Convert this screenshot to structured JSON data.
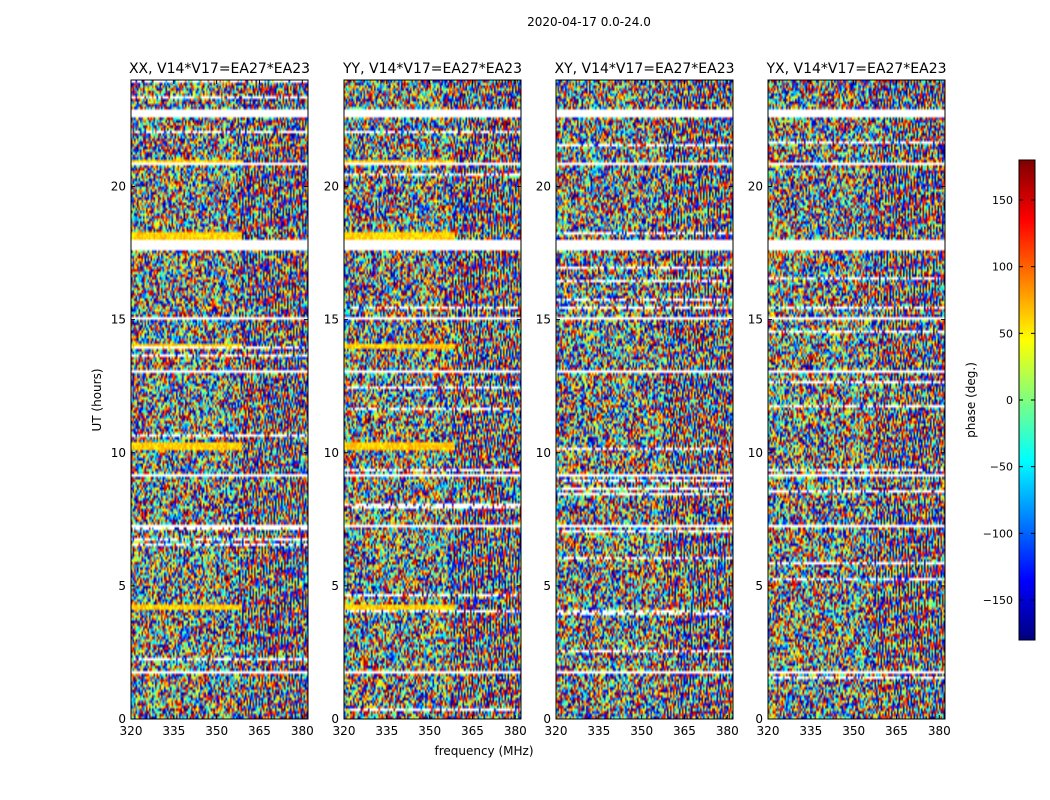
{
  "figure": {
    "suptitle": "2020-04-17 0.0-24.0",
    "xlabel": "frequency (MHz)",
    "ylabel": "UT (hours)",
    "colorbar_label": "phase (deg.)",
    "colorbar_colors": [
      "#00007f",
      "#0000ff",
      "#007fff",
      "#00ffff",
      "#7fff7f",
      "#ffff00",
      "#ff7f00",
      "#ff0000",
      "#7f0000"
    ]
  },
  "chart_data": [
    {
      "type": "heatmap",
      "title": "XX, V14*V17=EA27*EA23",
      "xlabel": "frequency (MHz)",
      "ylabel": "UT (hours)",
      "xlim": [
        320,
        382
      ],
      "ylim": [
        0,
        24
      ],
      "xticks": [
        320,
        335,
        350,
        365,
        380
      ],
      "yticks": [
        0,
        5,
        10,
        15,
        20
      ],
      "colorbar": {
        "label": "phase (deg.)",
        "range": [
          -180,
          180
        ],
        "ticks": [
          -150,
          -100,
          -50,
          0,
          50,
          100,
          150
        ]
      },
      "flagged_ut_ranges": [
        [
          1.75,
          1.8
        ],
        [
          7.2,
          7.3
        ],
        [
          9.1,
          9.2
        ],
        [
          10.1,
          10.15
        ],
        [
          13.05,
          13.1
        ],
        [
          15.05,
          15.1
        ],
        [
          17.6,
          18.0
        ],
        [
          20.8,
          20.9
        ],
        [
          22.6,
          22.9
        ]
      ],
      "coherent_bands_ut": [
        [
          4.1,
          4.3
        ],
        [
          10.1,
          10.4
        ],
        [
          13.9,
          14.1
        ],
        [
          17.9,
          18.3
        ],
        [
          20.9,
          21.0
        ]
      ]
    },
    {
      "type": "heatmap",
      "title": "YY, V14*V17=EA27*EA23",
      "xlabel": "frequency (MHz)",
      "ylabel": "UT (hours)",
      "xlim": [
        320,
        382
      ],
      "ylim": [
        0,
        24
      ],
      "xticks": [
        320,
        335,
        350,
        365,
        380
      ],
      "yticks": [
        0,
        5,
        10,
        15,
        20
      ],
      "colorbar": {
        "label": "phase (deg.)",
        "range": [
          -180,
          180
        ],
        "ticks": [
          -150,
          -100,
          -50,
          0,
          50,
          100,
          150
        ]
      },
      "flagged_ut_ranges": [
        [
          1.75,
          1.8
        ],
        [
          7.2,
          7.3
        ],
        [
          9.1,
          9.2
        ],
        [
          10.1,
          10.15
        ],
        [
          13.05,
          13.1
        ],
        [
          15.05,
          15.1
        ],
        [
          17.6,
          18.0
        ],
        [
          20.8,
          20.9
        ],
        [
          22.6,
          22.9
        ]
      ],
      "coherent_bands_ut": [
        [
          4.1,
          4.3
        ],
        [
          10.1,
          10.4
        ],
        [
          13.9,
          14.1
        ],
        [
          17.9,
          18.3
        ],
        [
          20.9,
          21.0
        ]
      ]
    },
    {
      "type": "heatmap",
      "title": "XY, V14*V17=EA27*EA23",
      "xlabel": "frequency (MHz)",
      "ylabel": "UT (hours)",
      "xlim": [
        320,
        382
      ],
      "ylim": [
        0,
        24
      ],
      "xticks": [
        320,
        335,
        350,
        365,
        380
      ],
      "yticks": [
        0,
        5,
        10,
        15,
        20
      ],
      "colorbar": {
        "label": "phase (deg.)",
        "range": [
          -180,
          180
        ],
        "ticks": [
          -150,
          -100,
          -50,
          0,
          50,
          100,
          150
        ]
      },
      "flagged_ut_ranges": [
        [
          1.75,
          1.8
        ],
        [
          7.2,
          7.3
        ],
        [
          9.1,
          9.2
        ],
        [
          10.1,
          10.15
        ],
        [
          13.05,
          13.1
        ],
        [
          15.05,
          15.1
        ],
        [
          17.6,
          18.0
        ],
        [
          20.8,
          20.9
        ],
        [
          22.6,
          22.9
        ]
      ],
      "coherent_bands_ut": []
    },
    {
      "type": "heatmap",
      "title": "YX, V14*V17=EA27*EA23",
      "xlabel": "frequency (MHz)",
      "ylabel": "UT (hours)",
      "xlim": [
        320,
        382
      ],
      "ylim": [
        0,
        24
      ],
      "xticks": [
        320,
        335,
        350,
        365,
        380
      ],
      "yticks": [
        0,
        5,
        10,
        15,
        20
      ],
      "colorbar": {
        "label": "phase (deg.)",
        "range": [
          -180,
          180
        ],
        "ticks": [
          -150,
          -100,
          -50,
          0,
          50,
          100,
          150
        ]
      },
      "flagged_ut_ranges": [
        [
          1.75,
          1.8
        ],
        [
          7.2,
          7.3
        ],
        [
          9.1,
          9.2
        ],
        [
          10.1,
          10.15
        ],
        [
          13.05,
          13.1
        ],
        [
          15.05,
          15.1
        ],
        [
          17.6,
          18.0
        ],
        [
          20.8,
          20.9
        ],
        [
          22.6,
          22.9
        ]
      ],
      "coherent_bands_ut": []
    }
  ]
}
